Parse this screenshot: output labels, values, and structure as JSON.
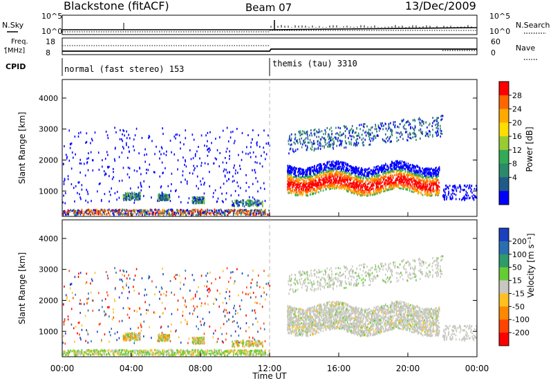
{
  "header": {
    "station": "Blackstone (fitACF)",
    "beam": "Beam 07",
    "date": "13/Dec/2009"
  },
  "strips": {
    "nsky_label": "N.Sky",
    "nsearch_label": "N.Search",
    "nsky_ticks": [
      "10^5",
      "10^0"
    ],
    "nsearch_ticks": [
      "10^5",
      "10^0"
    ],
    "freq_label_1": "Freq.",
    "freq_label_2": "[MHz]",
    "freq_ticks": [
      "18",
      "8"
    ],
    "nave_label": "Nave",
    "nave_ticks": [
      "60",
      "0"
    ],
    "cpid_label": "CPID",
    "cpid_segments": [
      "normal (fast stereo) 153",
      "themis (tau) 3310"
    ]
  },
  "chart_data": [
    {
      "type": "heatmap",
      "panel": "power",
      "ylabel": "Slant Range [km]",
      "xlabel": "Time UT",
      "yticks": [
        1000,
        2000,
        3000,
        4000
      ],
      "ylim": [
        180,
        4600
      ],
      "xticks": [
        "00:00",
        "04:00",
        "08:00",
        "12:00",
        "16:00",
        "20:00",
        "00:00"
      ],
      "xlim_hours": [
        0,
        24
      ],
      "colorbar": {
        "label": "Power [dB]",
        "ticks": [
          "28",
          "24",
          "20",
          "16",
          "12",
          "8",
          "4"
        ],
        "colors": [
          "#ff0000",
          "#ff6600",
          "#ffaa00",
          "#ffdd00",
          "#99cc33",
          "#33aa55",
          "#2a8a6a",
          "#205a8a",
          "#0000ff"
        ]
      }
    },
    {
      "type": "heatmap",
      "panel": "velocity",
      "ylabel": "Slant Range [km]",
      "xlabel": "Time UT",
      "yticks": [
        1000,
        2000,
        3000,
        4000
      ],
      "ylim": [
        180,
        4600
      ],
      "xticks": [
        "00:00",
        "04:00",
        "08:00",
        "12:00",
        "16:00",
        "20:00",
        "00:00"
      ],
      "xlim_hours": [
        0,
        24
      ],
      "colorbar": {
        "label": "Velocity [m s⁻¹]",
        "ticks": [
          "200",
          "100",
          "50",
          "15",
          "-15",
          "-50",
          "-100",
          "-200"
        ],
        "colors": [
          "#1a3fbf",
          "#2a6fb0",
          "#2f9a6a",
          "#66cc33",
          "#c8c8c0",
          "#ffc020",
          "#ff8800",
          "#ff4400",
          "#ff0000"
        ]
      }
    }
  ],
  "axis": {
    "xlabel": "Time UT",
    "xticks": [
      "00:00",
      "04:00",
      "08:00",
      "12:00",
      "16:00",
      "20:00",
      "00:00"
    ]
  }
}
